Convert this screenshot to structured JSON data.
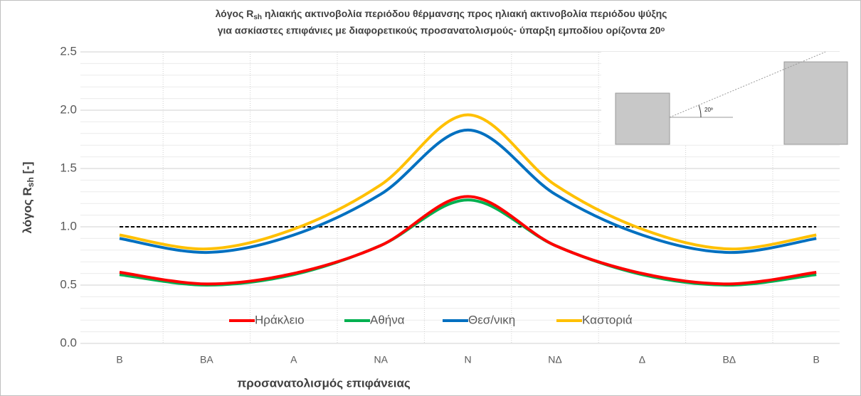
{
  "chart_data": {
    "type": "line",
    "title": {
      "line1": [
        "λόγος R",
        "sh",
        " ηλιακής ακτινοβολία περιόδου θέρμανσης προς  ηλιακή ακτινοβολία περιόδου ψύξης"
      ],
      "line2": "για ασκίαστες επιφάνιες με διαφορετικούς προσανατολισμούς- ύπαρξη εμποδίου ορίζοντα 20ᵒ"
    },
    "xlabel": "προσανατολισμός επιφάνειας",
    "ylabel": [
      "λόγος R",
      "sh",
      " [-]"
    ],
    "categories": [
      "Β",
      "ΒΑ",
      "Α",
      "ΝΑ",
      "Ν",
      "ΝΔ",
      "Δ",
      "ΒΔ",
      "Β"
    ],
    "series": [
      {
        "name": "Ηράκλειο",
        "color": "#ff0000",
        "values": [
          0.61,
          0.51,
          0.6,
          0.84,
          1.26,
          0.84,
          0.6,
          0.51,
          0.61
        ]
      },
      {
        "name": "Αθήνα",
        "color": "#00b050",
        "values": [
          0.59,
          0.5,
          0.59,
          0.84,
          1.23,
          0.84,
          0.59,
          0.5,
          0.59
        ]
      },
      {
        "name": "Θεσ/νικη",
        "color": "#0070c0",
        "values": [
          0.9,
          0.78,
          0.93,
          1.28,
          1.83,
          1.28,
          0.93,
          0.78,
          0.9
        ]
      },
      {
        "name": "Καστοριά",
        "color": "#ffc000",
        "values": [
          0.93,
          0.81,
          0.98,
          1.36,
          1.96,
          1.36,
          0.98,
          0.81,
          0.93
        ]
      }
    ],
    "reference_line": {
      "value": 1.0,
      "color": "#000000"
    },
    "ylim": [
      0,
      2.5
    ],
    "yticks": [
      {
        "value": 0,
        "label": "0.0"
      },
      0.5,
      {
        "value": 1,
        "label": "1.0"
      },
      1.5,
      {
        "value": 2,
        "label": "2.0"
      },
      2.5
    ],
    "minor_yticks": [
      0.1,
      0.2,
      0.3,
      0.4,
      0.6,
      0.7,
      0.8,
      0.9,
      1.1,
      1.2,
      1.3,
      1.4,
      1.6,
      1.7,
      1.8,
      1.9,
      2.1,
      2.2,
      2.3,
      2.4
    ],
    "grid": true,
    "legend": "bottom",
    "inset_label": "20º"
  }
}
